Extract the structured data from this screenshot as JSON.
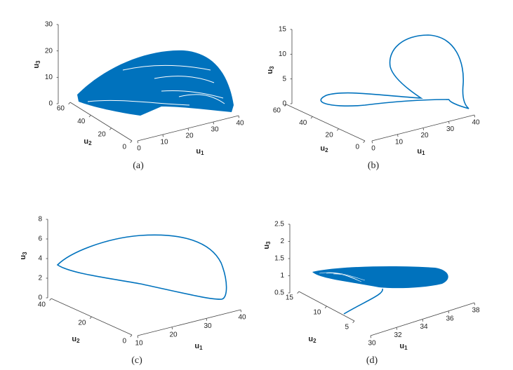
{
  "panels": [
    {
      "caption": "(a)",
      "axes": {
        "u1": {
          "name": "u",
          "sub": "1",
          "ticks": [
            0,
            10,
            20,
            30,
            40
          ]
        },
        "u2": {
          "name": "u",
          "sub": "2",
          "ticks": [
            0,
            20,
            40,
            60
          ]
        },
        "u3": {
          "name": "u",
          "sub": "3",
          "ticks": [
            0,
            10,
            20,
            30
          ]
        }
      }
    },
    {
      "caption": "(b)",
      "axes": {
        "u1": {
          "name": "u",
          "sub": "1",
          "ticks": [
            0,
            10,
            20,
            30,
            40
          ]
        },
        "u2": {
          "name": "u",
          "sub": "2",
          "ticks": [
            0,
            20,
            40,
            60
          ]
        },
        "u3": {
          "name": "u",
          "sub": "3",
          "ticks": [
            0,
            5,
            10,
            15
          ]
        }
      }
    },
    {
      "caption": "(c)",
      "axes": {
        "u1": {
          "name": "u",
          "sub": "1",
          "ticks": [
            10,
            20,
            30,
            40
          ]
        },
        "u2": {
          "name": "u",
          "sub": "2",
          "ticks": [
            0,
            20,
            40
          ]
        },
        "u3": {
          "name": "u",
          "sub": "3",
          "ticks": [
            0,
            2,
            4,
            6,
            8
          ]
        }
      }
    },
    {
      "caption": "(d)",
      "axes": {
        "u1": {
          "name": "u",
          "sub": "1",
          "ticks": [
            30,
            32,
            34,
            36,
            38
          ]
        },
        "u2": {
          "name": "u",
          "sub": "2",
          "ticks": [
            5,
            10,
            15
          ]
        },
        "u3": {
          "name": "u",
          "sub": "3",
          "ticks": [
            0.5,
            1,
            1.5,
            2,
            2.5
          ]
        }
      }
    }
  ]
}
